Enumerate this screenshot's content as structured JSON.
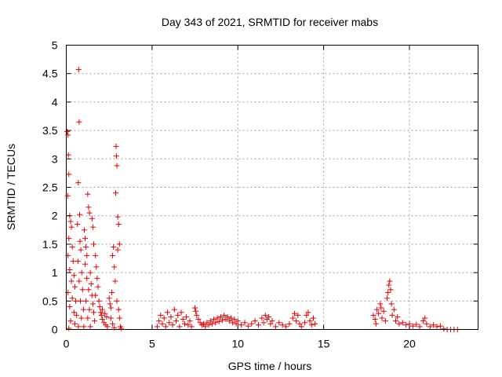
{
  "chart_data": {
    "type": "scatter",
    "title": "Day 343 of 2021, SRMTID for receiver mabs",
    "xlabel": "GPS time / hours",
    "ylabel": "SRMTID / TECUs",
    "xlim": [
      0,
      24
    ],
    "ylim": [
      0,
      5
    ],
    "xticks": [
      "0",
      "5",
      "10",
      "15",
      "20"
    ],
    "yticks": [
      "0",
      "0.5",
      "1",
      "1.5",
      "2",
      "2.5",
      "3",
      "3.5",
      "4",
      "4.5",
      "5"
    ],
    "grid": true,
    "marker": "+",
    "color": "#e00000",
    "series": [
      {
        "name": "SRMTID",
        "points": [
          [
            0.05,
            3.48
          ],
          [
            0.1,
            3.42
          ],
          [
            0.12,
            3.07
          ],
          [
            0.15,
            2.73
          ],
          [
            0.08,
            2.35
          ],
          [
            0.2,
            2.0
          ],
          [
            0.25,
            1.9
          ],
          [
            0.3,
            1.8
          ],
          [
            0.15,
            1.6
          ],
          [
            0.35,
            1.45
          ],
          [
            0.1,
            1.3
          ],
          [
            0.4,
            1.2
          ],
          [
            0.2,
            1.05
          ],
          [
            0.45,
            0.95
          ],
          [
            0.3,
            0.85
          ],
          [
            0.5,
            0.75
          ],
          [
            0.1,
            0.65
          ],
          [
            0.35,
            0.55
          ],
          [
            0.55,
            0.5
          ],
          [
            0.2,
            0.4
          ],
          [
            0.45,
            0.3
          ],
          [
            0.6,
            0.25
          ],
          [
            0.25,
            0.15
          ],
          [
            0.5,
            0.1
          ],
          [
            0.7,
            0.05
          ],
          [
            0.15,
            0.02
          ],
          [
            0.72,
            4.57
          ],
          [
            0.75,
            3.65
          ],
          [
            0.7,
            2.58
          ],
          [
            0.78,
            2.02
          ],
          [
            0.65,
            1.85
          ],
          [
            0.8,
            1.55
          ],
          [
            0.85,
            1.4
          ],
          [
            0.68,
            1.2
          ],
          [
            0.9,
            1.0
          ],
          [
            0.75,
            0.85
          ],
          [
            0.95,
            0.7
          ],
          [
            0.82,
            0.5
          ],
          [
            1.0,
            0.35
          ],
          [
            0.88,
            0.2
          ],
          [
            1.02,
            0.05
          ],
          [
            1.05,
            1.75
          ],
          [
            1.1,
            1.6
          ],
          [
            1.15,
            1.45
          ],
          [
            1.2,
            1.3
          ],
          [
            1.25,
            2.38
          ],
          [
            1.3,
            2.15
          ],
          [
            1.35,
            2.05
          ],
          [
            1.1,
            1.15
          ],
          [
            1.4,
            1.0
          ],
          [
            1.2,
            0.9
          ],
          [
            1.45,
            0.8
          ],
          [
            1.3,
            0.7
          ],
          [
            1.5,
            0.6
          ],
          [
            1.15,
            0.5
          ],
          [
            1.55,
            0.45
          ],
          [
            1.35,
            0.35
          ],
          [
            1.6,
            0.3
          ],
          [
            1.25,
            0.2
          ],
          [
            1.65,
            0.15
          ],
          [
            1.4,
            0.05
          ],
          [
            1.5,
            1.95
          ],
          [
            1.55,
            1.8
          ],
          [
            1.6,
            1.5
          ],
          [
            1.7,
            1.3
          ],
          [
            1.75,
            1.1
          ],
          [
            1.8,
            0.9
          ],
          [
            1.85,
            0.75
          ],
          [
            1.7,
            0.6
          ],
          [
            1.9,
            0.5
          ],
          [
            1.95,
            0.4
          ],
          [
            2.0,
            0.3
          ],
          [
            2.05,
            0.25
          ],
          [
            2.1,
            0.18
          ],
          [
            2.2,
            0.12
          ],
          [
            2.3,
            0.08
          ],
          [
            2.4,
            0.05
          ],
          [
            2.1,
            0.35
          ],
          [
            2.25,
            0.28
          ],
          [
            2.35,
            0.22
          ],
          [
            2.5,
            0.55
          ],
          [
            2.55,
            0.45
          ],
          [
            2.6,
            0.38
          ],
          [
            2.65,
            0.65
          ],
          [
            2.7,
            1.3
          ],
          [
            2.75,
            1.45
          ],
          [
            2.8,
            1.1
          ],
          [
            2.85,
            0.85
          ],
          [
            2.6,
            0.2
          ],
          [
            2.7,
            0.1
          ],
          [
            2.8,
            0.03
          ],
          [
            2.9,
            3.22
          ],
          [
            2.92,
            3.05
          ],
          [
            2.95,
            2.88
          ],
          [
            2.88,
            2.4
          ],
          [
            3.0,
            1.98
          ],
          [
            3.05,
            1.85
          ],
          [
            3.1,
            1.5
          ],
          [
            3.0,
            1.4
          ],
          [
            2.95,
            0.5
          ],
          [
            3.05,
            0.35
          ],
          [
            3.1,
            0.2
          ],
          [
            3.15,
            0.05
          ],
          [
            3.2,
            0.02
          ],
          [
            5.3,
            0.05
          ],
          [
            5.4,
            0.15
          ],
          [
            5.5,
            0.25
          ],
          [
            5.6,
            0.1
          ],
          [
            5.7,
            0.2
          ],
          [
            5.8,
            0.05
          ],
          [
            5.9,
            0.3
          ],
          [
            6.0,
            0.12
          ],
          [
            6.1,
            0.22
          ],
          [
            6.2,
            0.08
          ],
          [
            6.3,
            0.35
          ],
          [
            6.4,
            0.15
          ],
          [
            6.5,
            0.25
          ],
          [
            6.6,
            0.05
          ],
          [
            6.7,
            0.3
          ],
          [
            6.8,
            0.18
          ],
          [
            6.9,
            0.1
          ],
          [
            7.0,
            0.22
          ],
          [
            7.1,
            0.08
          ],
          [
            7.2,
            0.15
          ],
          [
            7.3,
            0.05
          ],
          [
            7.5,
            0.38
          ],
          [
            7.55,
            0.32
          ],
          [
            7.6,
            0.25
          ],
          [
            7.7,
            0.18
          ],
          [
            7.8,
            0.12
          ],
          [
            7.9,
            0.08
          ],
          [
            8.0,
            0.1
          ],
          [
            8.1,
            0.05
          ],
          [
            8.2,
            0.12
          ],
          [
            8.3,
            0.08
          ],
          [
            8.4,
            0.15
          ],
          [
            8.5,
            0.1
          ],
          [
            8.6,
            0.18
          ],
          [
            8.7,
            0.12
          ],
          [
            8.8,
            0.2
          ],
          [
            8.9,
            0.14
          ],
          [
            9.0,
            0.22
          ],
          [
            9.1,
            0.16
          ],
          [
            9.2,
            0.25
          ],
          [
            9.3,
            0.18
          ],
          [
            9.4,
            0.22
          ],
          [
            9.5,
            0.15
          ],
          [
            9.6,
            0.2
          ],
          [
            9.7,
            0.12
          ],
          [
            9.8,
            0.18
          ],
          [
            9.9,
            0.1
          ],
          [
            10.0,
            0.15
          ],
          [
            10.2,
            0.08
          ],
          [
            10.4,
            0.12
          ],
          [
            10.6,
            0.06
          ],
          [
            10.8,
            0.1
          ],
          [
            11.0,
            0.15
          ],
          [
            11.2,
            0.08
          ],
          [
            11.4,
            0.2
          ],
          [
            11.5,
            0.12
          ],
          [
            11.6,
            0.25
          ],
          [
            11.7,
            0.18
          ],
          [
            11.8,
            0.22
          ],
          [
            11.9,
            0.1
          ],
          [
            12.0,
            0.15
          ],
          [
            12.2,
            0.05
          ],
          [
            12.4,
            0.12
          ],
          [
            12.6,
            0.08
          ],
          [
            12.8,
            0.05
          ],
          [
            13.0,
            0.1
          ],
          [
            13.2,
            0.2
          ],
          [
            13.3,
            0.28
          ],
          [
            13.4,
            0.15
          ],
          [
            13.5,
            0.25
          ],
          [
            13.6,
            0.1
          ],
          [
            13.7,
            0.05
          ],
          [
            13.9,
            0.12
          ],
          [
            14.0,
            0.25
          ],
          [
            14.1,
            0.3
          ],
          [
            14.2,
            0.15
          ],
          [
            14.3,
            0.08
          ],
          [
            14.4,
            0.2
          ],
          [
            14.5,
            0.1
          ],
          [
            17.9,
            0.25
          ],
          [
            18.0,
            0.18
          ],
          [
            18.05,
            0.1
          ],
          [
            18.1,
            0.35
          ],
          [
            18.2,
            0.28
          ],
          [
            18.3,
            0.45
          ],
          [
            18.35,
            0.38
          ],
          [
            18.4,
            0.2
          ],
          [
            18.5,
            0.32
          ],
          [
            18.6,
            0.15
          ],
          [
            18.7,
            0.55
          ],
          [
            18.75,
            0.65
          ],
          [
            18.8,
            0.78
          ],
          [
            18.85,
            0.85
          ],
          [
            18.9,
            0.7
          ],
          [
            18.95,
            0.45
          ],
          [
            19.0,
            0.25
          ],
          [
            19.1,
            0.35
          ],
          [
            19.2,
            0.15
          ],
          [
            19.3,
            0.22
          ],
          [
            19.4,
            0.1
          ],
          [
            19.6,
            0.12
          ],
          [
            19.8,
            0.08
          ],
          [
            20.0,
            0.1
          ],
          [
            20.2,
            0.06
          ],
          [
            20.4,
            0.09
          ],
          [
            20.6,
            0.05
          ],
          [
            20.8,
            0.15
          ],
          [
            20.9,
            0.2
          ],
          [
            21.0,
            0.1
          ],
          [
            21.2,
            0.05
          ],
          [
            21.4,
            0.08
          ],
          [
            21.6,
            0.05
          ],
          [
            21.8,
            0.06
          ],
          [
            22.0,
            0.01
          ],
          [
            22.2,
            0.0
          ],
          [
            22.4,
            0.0
          ],
          [
            22.6,
            0.0
          ],
          [
            22.8,
            0.0
          ]
        ]
      }
    ]
  }
}
